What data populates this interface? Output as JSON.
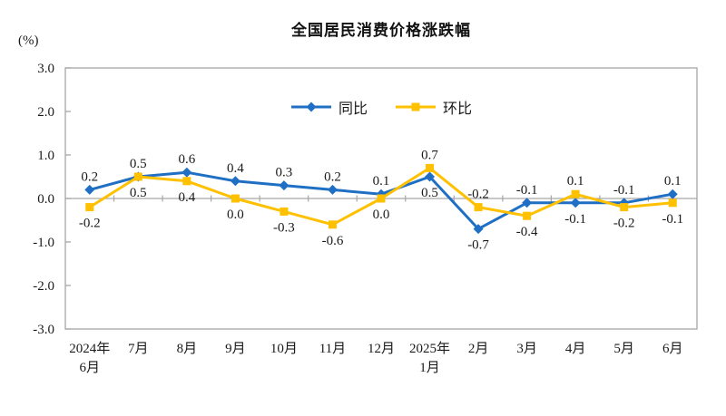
{
  "chart": {
    "axis_color": "#a6a6a6",
    "text_color": "#1a1a1a"
  },
  "chart_data": {
    "type": "line",
    "title": "全国居民消费价格涨跌幅",
    "ylabel": "(%)",
    "xlabel": "",
    "ylim": [
      -3.0,
      3.0
    ],
    "ytick_step": 1.0,
    "yticks": [
      "3.0",
      "2.0",
      "1.0",
      "0.0",
      "-1.0",
      "-2.0",
      "-3.0"
    ],
    "grid": "zero-line-only",
    "legend_position": "top-center-inside",
    "data_labels": true,
    "categories": [
      [
        "2024年",
        "6月"
      ],
      [
        "7月"
      ],
      [
        "8月"
      ],
      [
        "9月"
      ],
      [
        "10月"
      ],
      [
        "11月"
      ],
      [
        "12月"
      ],
      [
        "2025年",
        "1月"
      ],
      [
        "2月"
      ],
      [
        "3月"
      ],
      [
        "4月"
      ],
      [
        "5月"
      ],
      [
        "6月"
      ]
    ],
    "series": [
      {
        "name": "同比",
        "marker": "diamond",
        "color": "#1f6fc4",
        "values": [
          0.2,
          0.5,
          0.6,
          0.4,
          0.3,
          0.2,
          0.1,
          0.5,
          -0.7,
          -0.1,
          -0.1,
          -0.1,
          0.1
        ]
      },
      {
        "name": "环比",
        "marker": "square",
        "color": "#ffc000",
        "values": [
          -0.2,
          0.5,
          0.4,
          0.0,
          -0.3,
          -0.6,
          0.0,
          0.7,
          -0.2,
          -0.4,
          0.1,
          -0.2,
          -0.1
        ]
      }
    ]
  }
}
